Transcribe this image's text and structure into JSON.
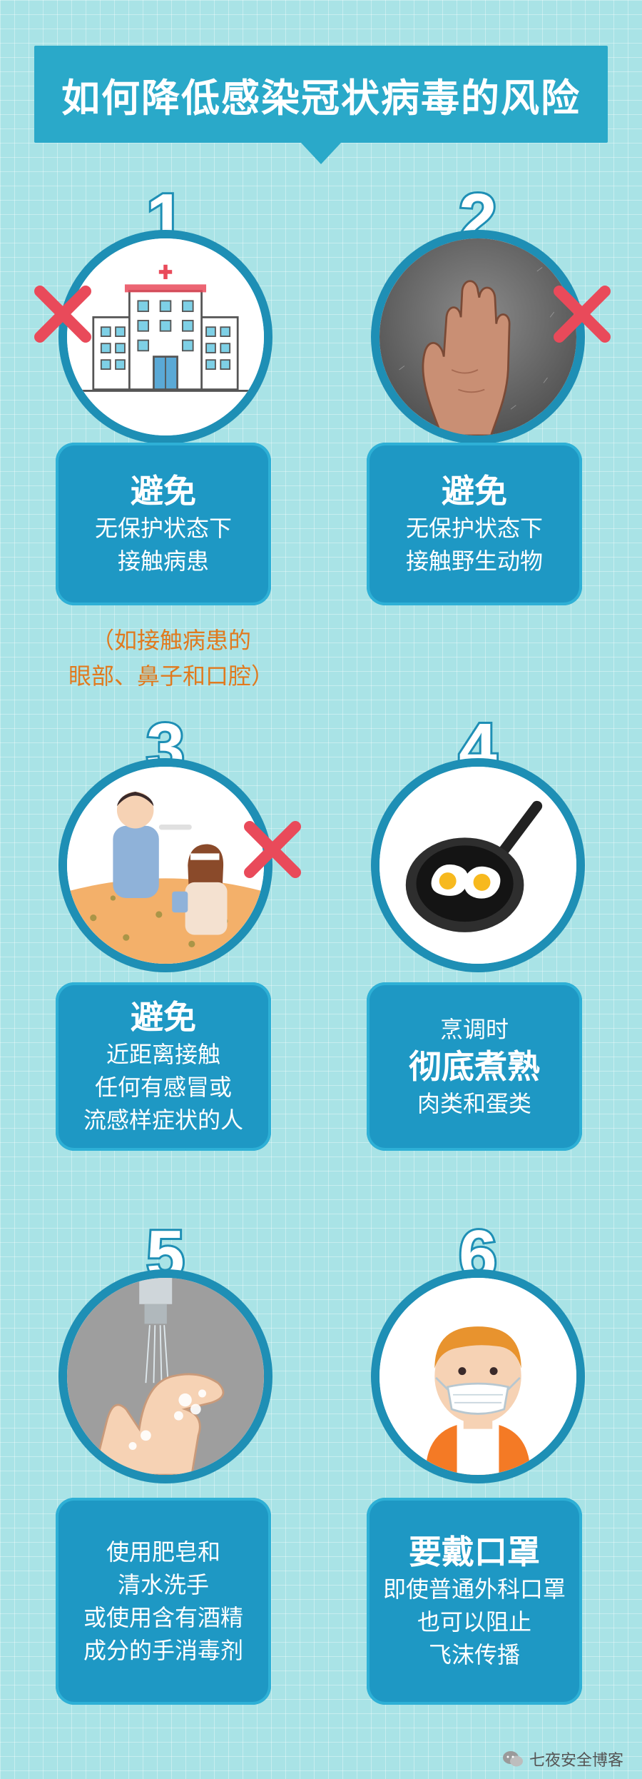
{
  "title": "如何降低感染冠状病毒的风险",
  "note": [
    "（如接触病患的",
    "眼部、鼻子和口腔）"
  ],
  "steps": [
    {
      "number": "1",
      "big": "避免",
      "lines": [
        "无保护状态下",
        "接触病患"
      ]
    },
    {
      "number": "2",
      "big": "避免",
      "lines": [
        "无保护状态下",
        "接触野生动物"
      ]
    },
    {
      "number": "3",
      "big": "避免",
      "lines": [
        "近距离接触",
        "任何有感冒或",
        "流感样症状的人"
      ]
    },
    {
      "number": "4",
      "pre": "烹调时",
      "big": "彻底煮熟",
      "lines": [
        "肉类和蛋类"
      ]
    },
    {
      "number": "5",
      "lines": [
        "使用肥皂和",
        "清水洗手",
        "或使用含有酒精",
        "成分的手消毒剂"
      ]
    },
    {
      "number": "6",
      "big": "要戴口罩",
      "lines": [
        "即使普通外科口罩",
        "也可以阻止",
        "飞沫传播"
      ]
    }
  ],
  "watermark": "七夜安全博客",
  "colors": {
    "banner": "#2aa9c9",
    "card": "#1e98c4",
    "ring": "#1e8fb5",
    "note": "#e07a1f",
    "x": "#e94a5a"
  }
}
